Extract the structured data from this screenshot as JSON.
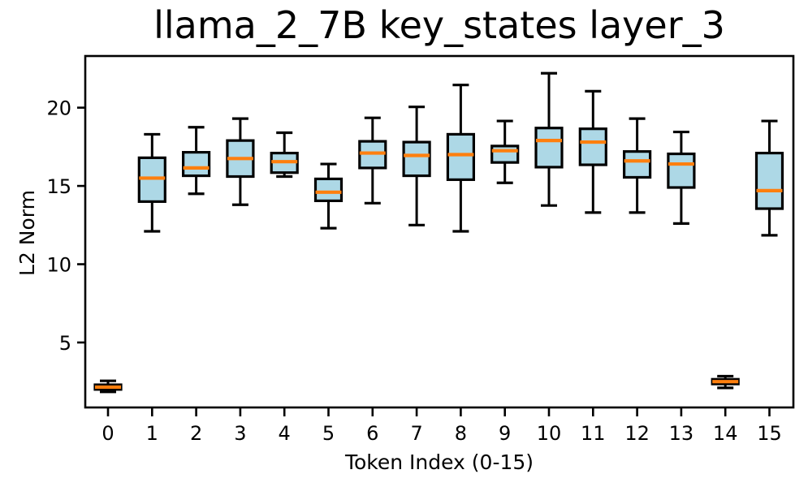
{
  "figure": {
    "background": "#FFFFFF"
  },
  "chart_data": {
    "type": "boxplot",
    "title": "llama_2_7B key_states layer_3",
    "xlabel": "Token Index (0-15)",
    "ylabel": "L2 Norm",
    "categories": [
      "0",
      "1",
      "2",
      "3",
      "4",
      "5",
      "6",
      "7",
      "8",
      "9",
      "10",
      "11",
      "12",
      "13",
      "14",
      "15"
    ],
    "yticks": [
      5,
      10,
      15,
      20
    ],
    "ylim": [
      0.85,
      23.3
    ],
    "grid": false,
    "legend": null,
    "colors": {
      "box_fill": "#ADD8E6",
      "median": "#FF7F0E",
      "line": "#000000",
      "text": "#000000",
      "background": "#FFFFFF"
    },
    "boxes": [
      {
        "token": 0,
        "whislo": 1.85,
        "q1": 2.0,
        "med": 2.15,
        "q3": 2.3,
        "whishi": 2.55
      },
      {
        "token": 1,
        "whislo": 12.1,
        "q1": 14.0,
        "med": 15.5,
        "q3": 16.8,
        "whishi": 18.3
      },
      {
        "token": 2,
        "whislo": 14.5,
        "q1": 15.65,
        "med": 16.15,
        "q3": 17.15,
        "whishi": 18.75
      },
      {
        "token": 3,
        "whislo": 13.8,
        "q1": 15.6,
        "med": 16.75,
        "q3": 17.9,
        "whishi": 19.3
      },
      {
        "token": 4,
        "whislo": 15.6,
        "q1": 15.85,
        "med": 16.55,
        "q3": 17.1,
        "whishi": 18.4
      },
      {
        "token": 5,
        "whislo": 12.3,
        "q1": 14.05,
        "med": 14.6,
        "q3": 15.45,
        "whishi": 16.4
      },
      {
        "token": 6,
        "whislo": 13.9,
        "q1": 16.15,
        "med": 17.1,
        "q3": 17.85,
        "whishi": 19.35
      },
      {
        "token": 7,
        "whislo": 12.5,
        "q1": 15.65,
        "med": 16.95,
        "q3": 17.8,
        "whishi": 20.05
      },
      {
        "token": 8,
        "whislo": 12.1,
        "q1": 15.4,
        "med": 17.0,
        "q3": 18.3,
        "whishi": 21.45
      },
      {
        "token": 9,
        "whislo": 15.2,
        "q1": 16.5,
        "med": 17.25,
        "q3": 17.55,
        "whishi": 19.15
      },
      {
        "token": 10,
        "whislo": 13.75,
        "q1": 16.2,
        "med": 17.9,
        "q3": 18.7,
        "whishi": 22.2
      },
      {
        "token": 11,
        "whislo": 13.3,
        "q1": 16.35,
        "med": 17.8,
        "q3": 18.65,
        "whishi": 21.05
      },
      {
        "token": 12,
        "whislo": 13.3,
        "q1": 15.55,
        "med": 16.6,
        "q3": 17.2,
        "whishi": 19.3
      },
      {
        "token": 13,
        "whislo": 12.6,
        "q1": 14.9,
        "med": 16.4,
        "q3": 17.05,
        "whishi": 18.45
      },
      {
        "token": 14,
        "whislo": 2.1,
        "q1": 2.35,
        "med": 2.5,
        "q3": 2.65,
        "whishi": 2.85
      },
      {
        "token": 15,
        "whislo": 11.85,
        "q1": 13.55,
        "med": 14.7,
        "q3": 17.1,
        "whishi": 19.15
      }
    ]
  }
}
